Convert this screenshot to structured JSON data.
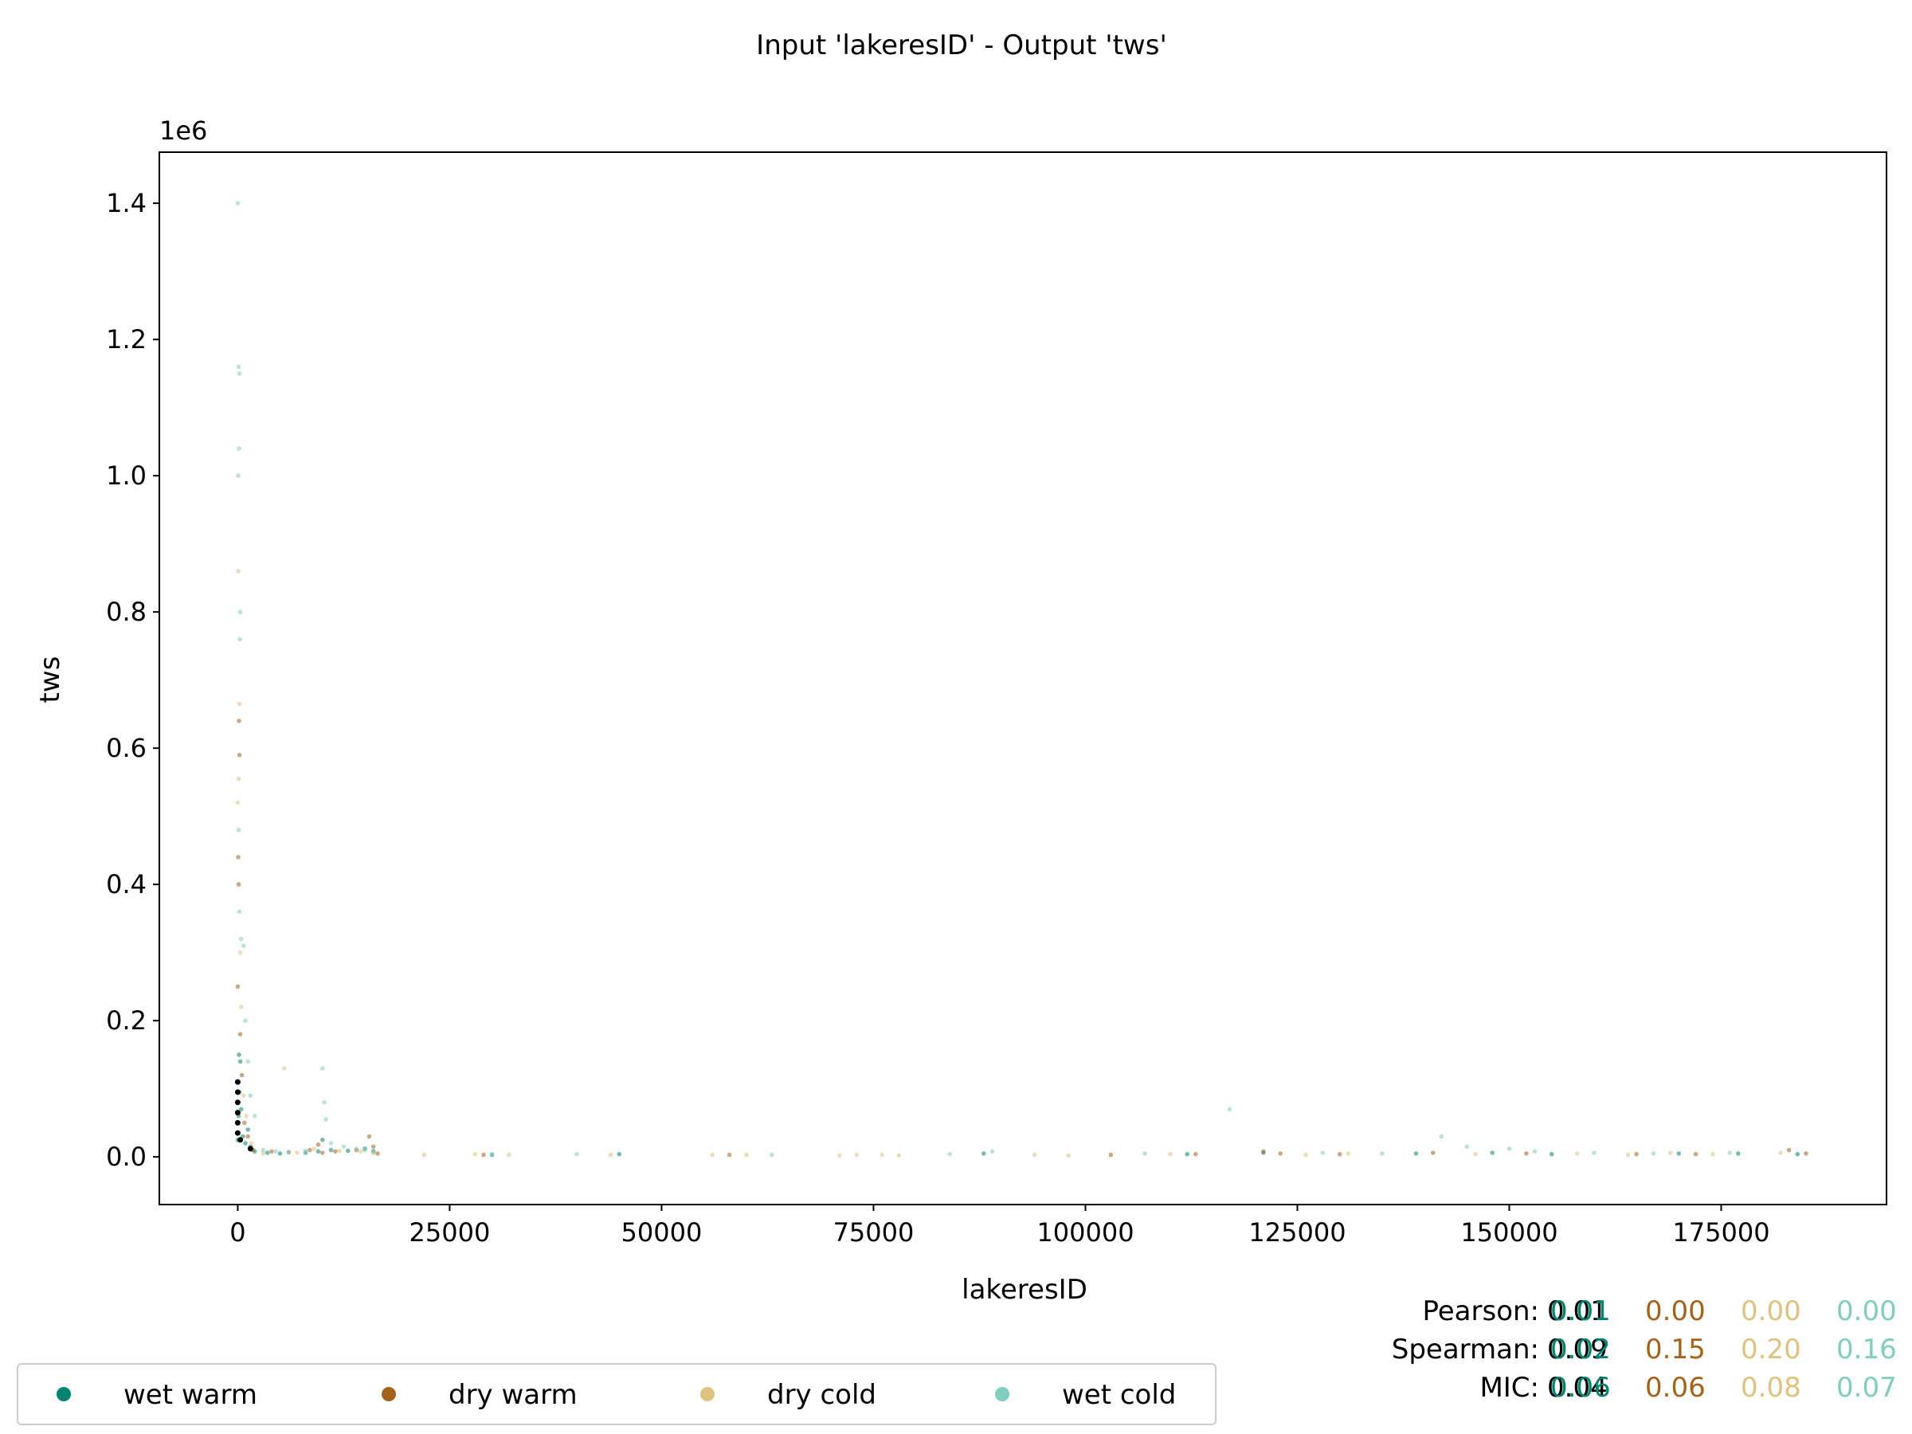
{
  "chart_data": {
    "type": "scatter",
    "title": "Input 'lakeresID' - Output 'tws'",
    "xlabel": "lakeresID",
    "ylabel": "tws",
    "y_offset_text": "1e6",
    "xlim": [
      -9250,
      194500
    ],
    "ylim": [
      -70000,
      1475000
    ],
    "x_ticks": [
      0,
      25000,
      50000,
      75000,
      100000,
      125000,
      150000,
      175000
    ],
    "x_tick_labels": [
      "0",
      "25000",
      "50000",
      "75000",
      "100000",
      "125000",
      "150000",
      "175000"
    ],
    "y_ticks": [
      0,
      200000,
      400000,
      600000,
      800000,
      1000000,
      1200000,
      1400000
    ],
    "y_tick_labels": [
      "0.0",
      "0.2",
      "0.4",
      "0.6",
      "0.8",
      "1.0",
      "1.2",
      "1.4"
    ],
    "grid": false,
    "legend_position": "bottom-left, below plot",
    "series": [
      {
        "name": "wet warm",
        "color": "#018571",
        "points": [
          [
            0,
            25000
          ],
          [
            100,
            60000
          ],
          [
            200,
            95000
          ],
          [
            300,
            140000
          ],
          [
            150,
            150000
          ],
          [
            400,
            70000
          ],
          [
            600,
            30000
          ],
          [
            900,
            20000
          ],
          [
            1200,
            40000
          ],
          [
            1500,
            15000
          ],
          [
            2000,
            8000
          ],
          [
            3500,
            6000
          ],
          [
            5000,
            5000
          ],
          [
            8000,
            6000
          ],
          [
            9500,
            8000
          ],
          [
            10000,
            25000
          ],
          [
            11000,
            10000
          ],
          [
            13000,
            9000
          ],
          [
            15000,
            12000
          ],
          [
            16000,
            8000
          ],
          [
            30000,
            3000
          ],
          [
            45000,
            4000
          ],
          [
            88000,
            5000
          ],
          [
            112000,
            4000
          ],
          [
            121000,
            6000
          ],
          [
            139000,
            5000
          ],
          [
            148000,
            6000
          ],
          [
            155000,
            4000
          ],
          [
            170000,
            5000
          ],
          [
            177000,
            5000
          ],
          [
            184000,
            4000
          ]
        ]
      },
      {
        "name": "dry warm",
        "color": "#a6611a",
        "points": [
          [
            0,
            250000
          ],
          [
            100,
            400000
          ],
          [
            50,
            440000
          ],
          [
            150,
            640000
          ],
          [
            200,
            590000
          ],
          [
            300,
            180000
          ],
          [
            500,
            120000
          ],
          [
            800,
            50000
          ],
          [
            1200,
            30000
          ],
          [
            1800,
            10000
          ],
          [
            4000,
            8000
          ],
          [
            6000,
            7000
          ],
          [
            8500,
            10000
          ],
          [
            9500,
            18000
          ],
          [
            10000,
            6000
          ],
          [
            11500,
            8000
          ],
          [
            14000,
            10000
          ],
          [
            15500,
            30000
          ],
          [
            16000,
            15000
          ],
          [
            16500,
            5000
          ],
          [
            29000,
            3000
          ],
          [
            58000,
            3000
          ],
          [
            103000,
            3000
          ],
          [
            113000,
            4000
          ],
          [
            121000,
            8000
          ],
          [
            123000,
            5000
          ],
          [
            130000,
            4000
          ],
          [
            141000,
            6000
          ],
          [
            152000,
            5000
          ],
          [
            165000,
            4000
          ],
          [
            172000,
            4000
          ],
          [
            183000,
            10000
          ],
          [
            185000,
            5000
          ]
        ]
      },
      {
        "name": "dry cold",
        "color": "#dfc27d",
        "points": [
          [
            0,
            520000
          ],
          [
            100,
            555000
          ],
          [
            200,
            665000
          ],
          [
            50,
            860000
          ],
          [
            300,
            300000
          ],
          [
            400,
            220000
          ],
          [
            700,
            90000
          ],
          [
            1000,
            60000
          ],
          [
            1600,
            20000
          ],
          [
            3000,
            5000
          ],
          [
            5500,
            130000
          ],
          [
            7000,
            6000
          ],
          [
            9000,
            12000
          ],
          [
            12000,
            9000
          ],
          [
            14500,
            8000
          ],
          [
            16000,
            5000
          ],
          [
            22000,
            3000
          ],
          [
            28000,
            4000
          ],
          [
            32000,
            3000
          ],
          [
            44000,
            3000
          ],
          [
            56000,
            3000
          ],
          [
            60000,
            3000
          ],
          [
            71000,
            2000
          ],
          [
            73000,
            3000
          ],
          [
            76000,
            3000
          ],
          [
            78000,
            2000
          ],
          [
            94000,
            3000
          ],
          [
            98000,
            2000
          ],
          [
            110000,
            4000
          ],
          [
            126000,
            3000
          ],
          [
            131000,
            5000
          ],
          [
            146000,
            4000
          ],
          [
            158000,
            5000
          ],
          [
            164000,
            3000
          ],
          [
            169000,
            6000
          ],
          [
            174000,
            4000
          ],
          [
            182000,
            6000
          ]
        ]
      },
      {
        "name": "wet cold",
        "color": "#80cdc1",
        "points": [
          [
            0,
            1400000
          ],
          [
            100,
            1160000
          ],
          [
            200,
            1150000
          ],
          [
            150,
            1040000
          ],
          [
            50,
            1000000
          ],
          [
            300,
            800000
          ],
          [
            250,
            760000
          ],
          [
            100,
            480000
          ],
          [
            200,
            360000
          ],
          [
            400,
            320000
          ],
          [
            700,
            310000
          ],
          [
            900,
            200000
          ],
          [
            1200,
            140000
          ],
          [
            1500,
            90000
          ],
          [
            2000,
            60000
          ],
          [
            3000,
            10000
          ],
          [
            4500,
            8000
          ],
          [
            6000,
            7000
          ],
          [
            8000,
            9000
          ],
          [
            10000,
            130000
          ],
          [
            10200,
            80000
          ],
          [
            10400,
            55000
          ],
          [
            11000,
            20000
          ],
          [
            12500,
            15000
          ],
          [
            14000,
            12000
          ],
          [
            15000,
            10000
          ],
          [
            16000,
            9000
          ],
          [
            30000,
            4000
          ],
          [
            40000,
            4000
          ],
          [
            63000,
            3000
          ],
          [
            84000,
            4000
          ],
          [
            89000,
            8000
          ],
          [
            107000,
            5000
          ],
          [
            117000,
            70000
          ],
          [
            128000,
            6000
          ],
          [
            135000,
            5000
          ],
          [
            142000,
            30000
          ],
          [
            145000,
            15000
          ],
          [
            150000,
            12000
          ],
          [
            153000,
            8000
          ],
          [
            160000,
            6000
          ],
          [
            167000,
            5000
          ],
          [
            176000,
            6000
          ]
        ]
      },
      {
        "name": "",
        "color": "#000000",
        "points": [
          [
            0,
            35000
          ],
          [
            0,
            50000
          ],
          [
            0,
            65000
          ],
          [
            0,
            80000
          ],
          [
            0,
            95000
          ],
          [
            0,
            110000
          ],
          [
            300,
            25000
          ],
          [
            1500,
            12000
          ]
        ]
      }
    ],
    "stats": {
      "rows": [
        {
          "label": "Pearson:",
          "overall": "0.01",
          "values": [
            "0.01",
            "0.00",
            "0.00",
            "0.00"
          ]
        },
        {
          "label": "Spearman:",
          "overall": "0.09",
          "values": [
            "0.02",
            "0.15",
            "0.20",
            "0.16"
          ]
        },
        {
          "label": "MIC:",
          "overall": "0.04",
          "values": [
            "0.06",
            "0.06",
            "0.08",
            "0.07"
          ]
        }
      ],
      "value_colors": [
        "#018571",
        "#a6611a",
        "#dfc27d",
        "#80cdc1"
      ]
    },
    "legend": [
      {
        "label": "wet warm",
        "color": "#018571"
      },
      {
        "label": "dry warm",
        "color": "#a6611a"
      },
      {
        "label": "dry cold",
        "color": "#dfc27d"
      },
      {
        "label": "wet cold",
        "color": "#80cdc1"
      }
    ]
  }
}
